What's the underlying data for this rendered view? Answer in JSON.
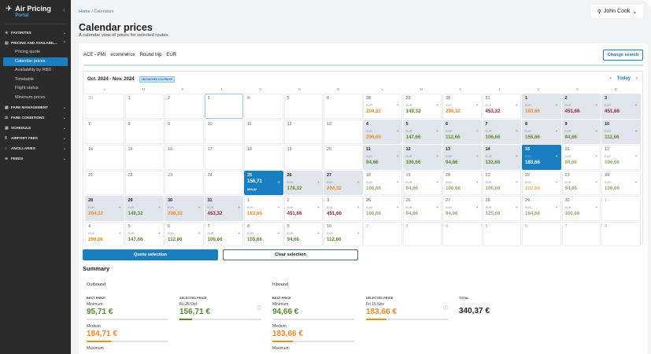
{
  "app": {
    "title": "Air Pricing",
    "subtitle": "Portal"
  },
  "sidebar": {
    "sections": [
      {
        "label": "Favorites",
        "icon": "star-icon",
        "expanded": false
      },
      {
        "label": "Pricing and availabil...",
        "icon": "pricing-icon",
        "expanded": true,
        "items": [
          "Pricing quote",
          "Calendar prices",
          "Availability by RBD",
          "Timetable",
          "Flight status",
          "Minimum prices"
        ],
        "active": "Calendar prices"
      },
      {
        "label": "Fare management",
        "icon": "fare-management-icon",
        "expanded": false
      },
      {
        "label": "Fare conditions",
        "icon": "fare-conditions-icon",
        "expanded": false
      },
      {
        "label": "Schedule",
        "icon": "schedule-icon",
        "expanded": false
      },
      {
        "label": "Airport fees",
        "icon": "dollar-icon",
        "expanded": false
      },
      {
        "label": "Ancillaries",
        "icon": "luggage-icon",
        "expanded": false
      },
      {
        "label": "Feeds",
        "icon": "feed-icon",
        "expanded": false
      }
    ]
  },
  "breadcrumb": {
    "home": "Home",
    "sep": "/",
    "current": "Calendars"
  },
  "user": {
    "name": "John Cook"
  },
  "page": {
    "title": "Calendar prices",
    "subtitle": "A calendar view of prices for selected routes."
  },
  "filters": {
    "route": "ACE - PMI",
    "channel": "ecommerce",
    "trip": "Round trip",
    "currency": "EUR",
    "change_label": "Change search"
  },
  "calendar": {
    "range_label": "Oct. 2024 - Nov. 2024",
    "badge": "Unchached calendar",
    "today_label": "Today",
    "weekdays": [
      "L",
      "M",
      "X",
      "J",
      "V",
      "S",
      "D"
    ],
    "currency": "EUR",
    "months": [
      {
        "name": "Oct 2024",
        "weeks": [
          [
            {
              "d": "30",
              "muted": true
            },
            {
              "d": "1"
            },
            {
              "d": "2"
            },
            {
              "d": "3",
              "today": true
            },
            {
              "d": "4"
            },
            {
              "d": "5"
            },
            {
              "d": "6"
            }
          ],
          [
            {
              "d": "7"
            },
            {
              "d": "8"
            },
            {
              "d": "9"
            },
            {
              "d": "10"
            },
            {
              "d": "11"
            },
            {
              "d": "12"
            },
            {
              "d": "13"
            }
          ],
          [
            {
              "d": "14"
            },
            {
              "d": "15"
            },
            {
              "d": "16"
            },
            {
              "d": "17"
            },
            {
              "d": "18"
            },
            {
              "d": "19"
            },
            {
              "d": "20"
            }
          ],
          [
            {
              "d": "21"
            },
            {
              "d": "22"
            },
            {
              "d": "23"
            },
            {
              "d": "24"
            },
            {
              "d": "25",
              "p": "156,71",
              "p2": "260,32",
              "sel": true
            },
            {
              "d": "26",
              "p": "178,32",
              "c": "green",
              "range": true
            },
            {
              "d": "27",
              "p": "204,32",
              "c": "orange",
              "range": true
            }
          ],
          [
            {
              "d": "28",
              "p": "204,32",
              "c": "orange",
              "range": true
            },
            {
              "d": "29",
              "p": "149,32",
              "c": "green",
              "range": true
            },
            {
              "d": "30",
              "p": "298,32",
              "c": "orange",
              "range": true
            },
            {
              "d": "31",
              "p": "453,32",
              "c": "red",
              "range": true
            },
            {
              "d": "1",
              "p": "183,66",
              "c": "orange"
            },
            {
              "d": "2",
              "p": "451,66",
              "c": "red"
            },
            {
              "d": "3",
              "p": "451,66",
              "c": "red"
            }
          ],
          [
            {
              "d": "4",
              "p": "296,66",
              "c": "orange"
            },
            {
              "d": "5",
              "p": "147,66",
              "c": "green"
            },
            {
              "d": "6",
              "p": "112,66",
              "c": "green"
            },
            {
              "d": "7",
              "p": "106,66",
              "c": "green"
            },
            {
              "d": "8",
              "p": "155,66",
              "c": "green"
            },
            {
              "d": "9",
              "p": "94,66",
              "c": "green"
            },
            {
              "d": "10",
              "p": "112,66",
              "c": "green"
            }
          ]
        ]
      },
      {
        "name": "Nov 2024",
        "weeks": [
          [
            {
              "d": "28",
              "p": "204,32",
              "c": "orange"
            },
            {
              "d": "29",
              "p": "149,32",
              "c": "green"
            },
            {
              "d": "30",
              "p": "298,32",
              "c": "orange"
            },
            {
              "d": "31",
              "p": "453,32",
              "c": "red"
            },
            {
              "d": "1",
              "p": "183,66",
              "c": "orange",
              "range": true
            },
            {
              "d": "2",
              "p": "451,66",
              "c": "red",
              "range": true
            },
            {
              "d": "3",
              "p": "451,66",
              "c": "red",
              "range": true
            }
          ],
          [
            {
              "d": "4",
              "p": "296,66",
              "c": "orange",
              "range": true
            },
            {
              "d": "5",
              "p": "147,66",
              "c": "green",
              "range": true
            },
            {
              "d": "6",
              "p": "112,66",
              "c": "green",
              "range": true
            },
            {
              "d": "7",
              "p": "106,66",
              "c": "green",
              "range": true
            },
            {
              "d": "8",
              "p": "155,66",
              "c": "green",
              "range": true
            },
            {
              "d": "9",
              "p": "94,66",
              "c": "green",
              "range": true
            },
            {
              "d": "10",
              "p": "112,66",
              "c": "green",
              "range": true
            }
          ],
          [
            {
              "d": "11",
              "p": "94,66",
              "c": "green",
              "range": true
            },
            {
              "d": "12",
              "p": "106,66",
              "c": "green",
              "range": true
            },
            {
              "d": "13",
              "p": "94,66",
              "c": "green",
              "range": true
            },
            {
              "d": "14",
              "p": "132,66",
              "c": "green",
              "range": true
            },
            {
              "d": "15",
              "p": "183,66",
              "sel": true
            },
            {
              "d": "16",
              "p": "94,66",
              "c": "green",
              "lt": true
            },
            {
              "d": "17",
              "p": "106,66",
              "c": "green",
              "lt": true
            }
          ],
          [
            {
              "d": "18",
              "p": "106,66",
              "c": "green",
              "lt": true
            },
            {
              "d": "19",
              "p": "94,66",
              "c": "green",
              "lt": true
            },
            {
              "d": "20",
              "p": "106,66",
              "c": "green",
              "lt": true
            },
            {
              "d": "21",
              "p": "106,66",
              "c": "green",
              "lt": true
            },
            {
              "d": "22",
              "p": "202,66",
              "c": "orange",
              "lt": true
            },
            {
              "d": "23",
              "p": "94,66",
              "c": "green",
              "lt": true
            },
            {
              "d": "24",
              "p": "106,66",
              "c": "green",
              "lt": true
            }
          ],
          [
            {
              "d": "25",
              "p": "106,66",
              "c": "green",
              "lt": true
            },
            {
              "d": "26",
              "p": "94,66",
              "c": "green",
              "lt": true
            },
            {
              "d": "27",
              "p": "94,66",
              "c": "green",
              "lt": true
            },
            {
              "d": "28",
              "p": "125,66",
              "c": "green",
              "lt": true
            },
            {
              "d": "29",
              "p": "164,66",
              "c": "green",
              "lt": true
            },
            {
              "d": "30",
              "p": "100,66",
              "c": "green",
              "lt": true
            },
            {
              "d": "1",
              "muted": true
            }
          ],
          [
            {
              "d": "2",
              "muted": true
            },
            {
              "d": "3",
              "muted": true
            },
            {
              "d": "4",
              "muted": true
            },
            {
              "d": "5",
              "muted": true
            },
            {
              "d": "6",
              "muted": true
            },
            {
              "d": "7",
              "muted": true
            },
            {
              "d": "8",
              "muted": true
            }
          ]
        ]
      }
    ]
  },
  "actions": {
    "quote": "Quote selection",
    "clear": "Clear selection"
  },
  "summary": {
    "title": "Summary",
    "outbound": {
      "label": "Outbound",
      "best_label": "Best price",
      "min_label": "Minimum",
      "min": "95,71 €",
      "med_label": "Medium",
      "med": "184,71 €",
      "med_fill": 0.3,
      "max_label": "Maximum",
      "selected_label": "Selected price",
      "selected_date": "Fri 25 Oct",
      "selected": "156,71 €",
      "selected_fill": 0.15
    },
    "inbound": {
      "label": "Inbound",
      "best_label": "Best price",
      "min_label": "Minimum",
      "min": "94,66 €",
      "med_label": "Medium",
      "med": "183,66 €",
      "med_fill": 0.25,
      "max_label": "Maximum",
      "selected_label": "Selected price",
      "selected_date": "Fri 15 Nov",
      "selected": "183,66 €",
      "selected_fill": 0.25
    },
    "total_label": "Total",
    "total": "340,37 €"
  },
  "colors": {
    "accent": "#1a7fc1",
    "green": "#5b8a2b",
    "orange": "#f08a24",
    "red": "#9b2232"
  }
}
